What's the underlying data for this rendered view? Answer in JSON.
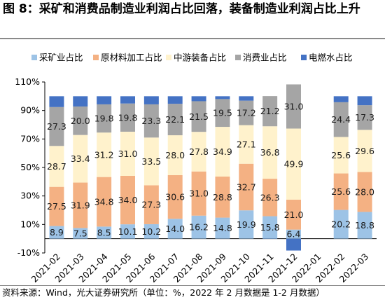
{
  "header": {
    "title": "图 8：采矿和消费品制造业利润占比回落，装备制造业利润占比上升"
  },
  "footer": {
    "source": "资料来源：Wind，光大证券研究所（单位：%，2022 年 2 月数据是 1-2 月数据）"
  },
  "chart_data": {
    "type": "bar",
    "stacked": true,
    "title": "",
    "xlabel": "",
    "ylabel": "",
    "ylim": [
      -10,
      110
    ],
    "yticks": [
      -10,
      10,
      30,
      50,
      70,
      90,
      110
    ],
    "ytick_labels": [
      "-10%",
      "10%",
      "30%",
      "50%",
      "70%",
      "90%",
      "110%"
    ],
    "grid": false,
    "legend_position": "top",
    "categories": [
      "2021-02",
      "2021-03",
      "2021-04",
      "2021-05",
      "2021-06",
      "2021-07",
      "2021-08",
      "2021-09",
      "2021-10",
      "2021-11",
      "2021-12",
      "2022-01",
      "2022-02",
      "2022-03"
    ],
    "series": [
      {
        "name": "采矿业占比",
        "color": "#9dc3e6",
        "values": [
          8.9,
          7.5,
          8.5,
          10.1,
          10.2,
          14.0,
          16.2,
          14.8,
          19.9,
          15.8,
          6.4,
          null,
          20.2,
          18.8
        ],
        "labels": [
          "8.9",
          "7.5",
          "8.5",
          "10.1",
          "10.2",
          "14.0",
          "16.2",
          "14.8",
          "19.9",
          "15.8",
          "6.4",
          "",
          "20.2",
          "18.8"
        ]
      },
      {
        "name": "原材料加工占比",
        "color": "#f4b183",
        "values": [
          27.5,
          31.9,
          34.8,
          34.0,
          27.3,
          30.6,
          31.0,
          28.8,
          32.7,
          26.3,
          21.0,
          null,
          25.6,
          28.0
        ],
        "labels": [
          "27.5",
          "31.9",
          "34.8",
          "34.0",
          "27.3",
          "30.6",
          "31.0",
          "28.8",
          "32.7",
          "26.3",
          "21.0",
          "",
          "25.6",
          "28.0"
        ]
      },
      {
        "name": "中游装备占比",
        "color": "#fff2cc",
        "values": [
          28.7,
          33.4,
          31.2,
          31.0,
          33.5,
          28.0,
          27.8,
          34.9,
          27.1,
          36.8,
          49.9,
          null,
          25.6,
          29.6
        ],
        "labels": [
          "28.7",
          "33.4",
          "31.2",
          "31.0",
          "33.5",
          "28.0",
          "27.8",
          "34.9",
          "27.1",
          "36.8",
          "49.9",
          "",
          "25.6",
          "29.6"
        ]
      },
      {
        "name": "消费业占比",
        "color": "#a5a5a5",
        "values": [
          27.3,
          20.0,
          19.8,
          19.8,
          23.3,
          22.1,
          21.5,
          19.5,
          17.2,
          21.2,
          31.0,
          null,
          24.4,
          17.3
        ],
        "labels": [
          "27.3",
          "20.0",
          "19.8",
          "19.8",
          "23.3",
          "22.1",
          "21.5",
          "19.5",
          "17.2",
          "21.2",
          "31.0",
          "",
          "24.4",
          "17.3"
        ]
      },
      {
        "name": "电燃水占比",
        "color": "#4472c4",
        "values": [
          7.6,
          7.2,
          5.7,
          5.1,
          5.7,
          5.3,
          3.5,
          2.0,
          3.1,
          -0.1,
          -8.3,
          null,
          4.2,
          6.3
        ],
        "labels": [
          "",
          "",
          "",
          "",
          "",
          "",
          "",
          "",
          "",
          "",
          "",
          "",
          "",
          ""
        ]
      }
    ]
  }
}
